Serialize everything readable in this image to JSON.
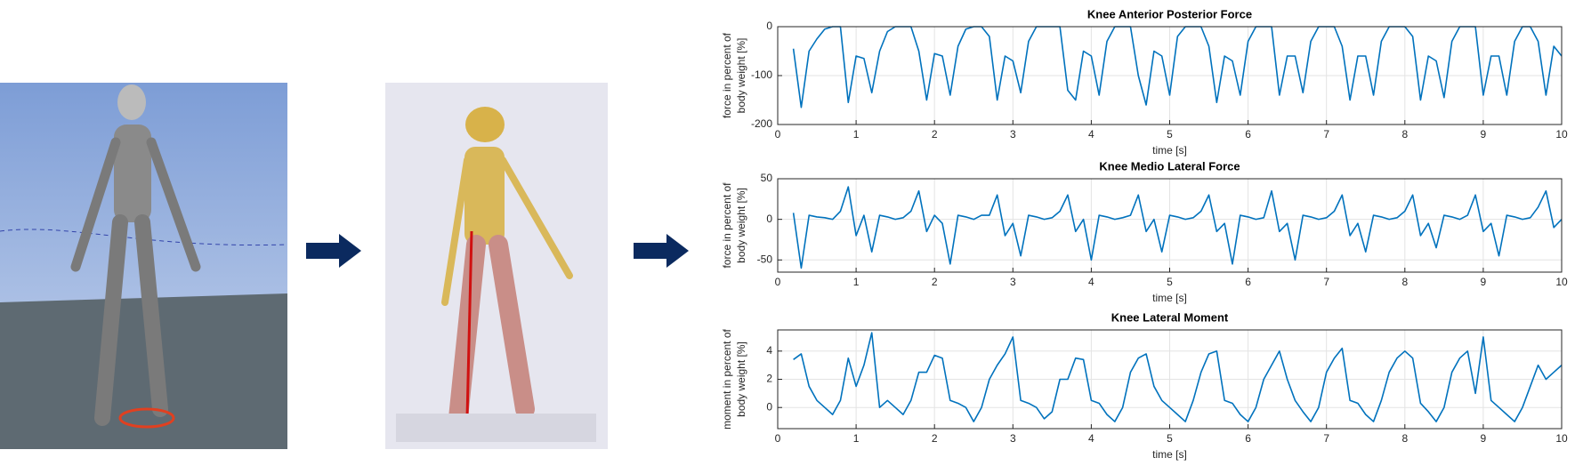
{
  "chart_data": [
    {
      "type": "line",
      "title": "Knee Anterior Posterior Force",
      "xlabel": "time [s]",
      "ylabel": [
        "force in percent of",
        "body weight [%]"
      ],
      "xlim": [
        0,
        10
      ],
      "xticks": [
        0,
        1,
        2,
        3,
        4,
        5,
        6,
        7,
        8,
        9,
        10
      ],
      "ylim": [
        -200,
        0
      ],
      "yticks": [
        -200,
        -100,
        0
      ],
      "grid": true,
      "color": "#0072bd",
      "x": [
        0.2,
        0.3,
        0.4,
        0.5,
        0.6,
        0.7,
        0.8,
        0.9,
        1.0,
        1.1,
        1.2,
        1.3,
        1.4,
        1.5,
        1.6,
        1.7,
        1.8,
        1.9,
        2.0,
        2.1,
        2.2,
        2.3,
        2.4,
        2.5,
        2.6,
        2.7,
        2.8,
        2.9,
        3.0,
        3.1,
        3.2,
        3.3,
        3.4,
        3.5,
        3.6,
        3.7,
        3.8,
        3.9,
        4.0,
        4.1,
        4.2,
        4.3,
        4.4,
        4.5,
        4.6,
        4.7,
        4.8,
        4.9,
        5.0,
        5.1,
        5.2,
        5.3,
        5.4,
        5.5,
        5.6,
        5.7,
        5.8,
        5.9,
        6.0,
        6.1,
        6.2,
        6.3,
        6.4,
        6.5,
        6.6,
        6.7,
        6.8,
        6.9,
        7.0,
        7.1,
        7.2,
        7.3,
        7.4,
        7.5,
        7.6,
        7.7,
        7.8,
        7.9,
        8.0,
        8.1,
        8.2,
        8.3,
        8.4,
        8.5,
        8.6,
        8.7,
        8.8,
        8.9,
        9.0,
        9.1,
        9.2,
        9.3,
        9.4,
        9.5,
        9.6,
        9.7,
        9.8,
        9.9,
        10.0
      ],
      "values": [
        -45,
        -165,
        -50,
        -25,
        -5,
        0,
        0,
        -155,
        -60,
        -65,
        -135,
        -50,
        -10,
        0,
        0,
        0,
        -50,
        -150,
        -55,
        -60,
        -140,
        -40,
        -5,
        0,
        0,
        -20,
        -150,
        -60,
        -70,
        -135,
        -30,
        0,
        0,
        0,
        0,
        -130,
        -150,
        -50,
        -60,
        -140,
        -30,
        0,
        0,
        0,
        -100,
        -160,
        -50,
        -60,
        -140,
        -20,
        0,
        0,
        0,
        -40,
        -155,
        -60,
        -70,
        -140,
        -30,
        0,
        0,
        0,
        -140,
        -60,
        -60,
        -135,
        -30,
        0,
        0,
        0,
        -40,
        -150,
        -60,
        -60,
        -140,
        -30,
        0,
        0,
        0,
        -20,
        -150,
        -60,
        -70,
        -145,
        -30,
        0,
        0,
        0,
        -140,
        -60,
        -60,
        -140,
        -30,
        0,
        0,
        -30,
        -140,
        -40,
        -60
      ]
    },
    {
      "type": "line",
      "title": "Knee Medio Lateral Force",
      "xlabel": "time [s]",
      "ylabel": [
        "force in percent of",
        "body weight [%]"
      ],
      "xlim": [
        0,
        10
      ],
      "xticks": [
        0,
        1,
        2,
        3,
        4,
        5,
        6,
        7,
        8,
        9,
        10
      ],
      "ylim": [
        -65,
        50
      ],
      "yticks": [
        -50,
        0,
        50
      ],
      "grid": true,
      "color": "#0072bd",
      "x": [
        0.2,
        0.3,
        0.4,
        0.5,
        0.6,
        0.7,
        0.8,
        0.9,
        1.0,
        1.1,
        1.2,
        1.3,
        1.4,
        1.5,
        1.6,
        1.7,
        1.8,
        1.9,
        2.0,
        2.1,
        2.2,
        2.3,
        2.4,
        2.5,
        2.6,
        2.7,
        2.8,
        2.9,
        3.0,
        3.1,
        3.2,
        3.3,
        3.4,
        3.5,
        3.6,
        3.7,
        3.8,
        3.9,
        4.0,
        4.1,
        4.2,
        4.3,
        4.4,
        4.5,
        4.6,
        4.7,
        4.8,
        4.9,
        5.0,
        5.1,
        5.2,
        5.3,
        5.4,
        5.5,
        5.6,
        5.7,
        5.8,
        5.9,
        6.0,
        6.1,
        6.2,
        6.3,
        6.4,
        6.5,
        6.6,
        6.7,
        6.8,
        6.9,
        7.0,
        7.1,
        7.2,
        7.3,
        7.4,
        7.5,
        7.6,
        7.7,
        7.8,
        7.9,
        8.0,
        8.1,
        8.2,
        8.3,
        8.4,
        8.5,
        8.6,
        8.7,
        8.8,
        8.9,
        9.0,
        9.1,
        9.2,
        9.3,
        9.4,
        9.5,
        9.6,
        9.7,
        9.8,
        9.9,
        10.0
      ],
      "values": [
        8,
        -60,
        5,
        3,
        2,
        0,
        10,
        40,
        -20,
        5,
        -40,
        5,
        3,
        0,
        2,
        10,
        35,
        -15,
        5,
        -5,
        -55,
        5,
        3,
        0,
        5,
        5,
        30,
        -20,
        -5,
        -45,
        5,
        3,
        0,
        2,
        10,
        30,
        -15,
        0,
        -50,
        5,
        3,
        0,
        2,
        5,
        30,
        -15,
        0,
        -40,
        5,
        3,
        0,
        2,
        10,
        30,
        -15,
        -5,
        -55,
        5,
        3,
        0,
        2,
        35,
        -15,
        -5,
        -50,
        5,
        3,
        0,
        2,
        10,
        30,
        -20,
        -5,
        -40,
        5,
        3,
        0,
        2,
        10,
        30,
        -20,
        -5,
        -35,
        5,
        3,
        0,
        5,
        30,
        -15,
        -5,
        -45,
        5,
        3,
        0,
        2,
        15,
        35,
        -10,
        0
      ]
    },
    {
      "type": "line",
      "title": "Knee Lateral Moment",
      "xlabel": "time [s]",
      "ylabel": [
        "moment in percent of",
        "body weight [%]"
      ],
      "xlim": [
        0,
        10
      ],
      "xticks": [
        0,
        1,
        2,
        3,
        4,
        5,
        6,
        7,
        8,
        9,
        10
      ],
      "ylim": [
        -1.5,
        5.5
      ],
      "yticks": [
        0,
        2,
        4
      ],
      "grid": true,
      "color": "#0072bd",
      "x": [
        0.2,
        0.3,
        0.4,
        0.5,
        0.6,
        0.7,
        0.8,
        0.9,
        1.0,
        1.1,
        1.2,
        1.3,
        1.4,
        1.5,
        1.6,
        1.7,
        1.8,
        1.9,
        2.0,
        2.1,
        2.2,
        2.3,
        2.4,
        2.5,
        2.6,
        2.7,
        2.8,
        2.9,
        3.0,
        3.1,
        3.2,
        3.3,
        3.4,
        3.5,
        3.6,
        3.7,
        3.8,
        3.9,
        4.0,
        4.1,
        4.2,
        4.3,
        4.4,
        4.5,
        4.6,
        4.7,
        4.8,
        4.9,
        5.0,
        5.1,
        5.2,
        5.3,
        5.4,
        5.5,
        5.6,
        5.7,
        5.8,
        5.9,
        6.0,
        6.1,
        6.2,
        6.3,
        6.4,
        6.5,
        6.6,
        6.7,
        6.8,
        6.9,
        7.0,
        7.1,
        7.2,
        7.3,
        7.4,
        7.5,
        7.6,
        7.7,
        7.8,
        7.9,
        8.0,
        8.1,
        8.2,
        8.3,
        8.4,
        8.5,
        8.6,
        8.7,
        8.8,
        8.9,
        9.0,
        9.1,
        9.2,
        9.3,
        9.4,
        9.5,
        9.6,
        9.7,
        9.8,
        9.9,
        10.0
      ],
      "values": [
        3.4,
        3.8,
        1.5,
        0.5,
        0,
        -0.5,
        0.5,
        3.5,
        1.5,
        3,
        5.3,
        0,
        0.5,
        0,
        -0.5,
        0.5,
        2.5,
        2.5,
        3.7,
        3.5,
        0.5,
        0.3,
        0,
        -1,
        0,
        2,
        3,
        3.8,
        5,
        0.5,
        0.3,
        0,
        -0.8,
        -0.3,
        2,
        2,
        3.5,
        3.4,
        0.5,
        0.3,
        -0.5,
        -1,
        0,
        2.5,
        3.5,
        3.8,
        1.5,
        0.5,
        0,
        -0.5,
        -1,
        0.5,
        2.5,
        3.8,
        4,
        0.5,
        0.3,
        -0.5,
        -1,
        0,
        2,
        3,
        4,
        2,
        0.5,
        -0.3,
        -1,
        0,
        2.5,
        3.5,
        4.2,
        0.5,
        0.3,
        -0.5,
        -1,
        0.5,
        2.5,
        3.5,
        4,
        3.5,
        0.3,
        -0.3,
        -1,
        0,
        2.5,
        3.5,
        4,
        1,
        5,
        0.5,
        0,
        -0.5,
        -1,
        0,
        1.5,
        3,
        2,
        2.5,
        3
      ]
    }
  ]
}
